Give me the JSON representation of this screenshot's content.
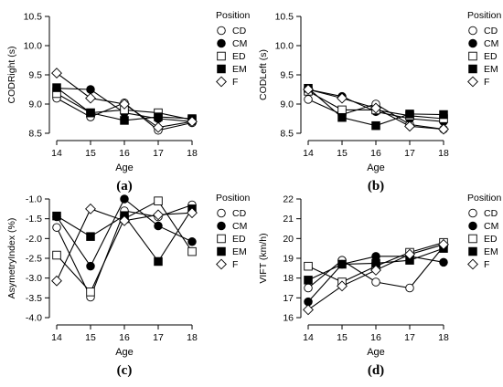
{
  "chart_data": [
    {
      "type": "line",
      "panel_label": "(a)",
      "xlabel": "Age",
      "ylabel": "CODRight (s)",
      "x": [
        14,
        15,
        16,
        17,
        18
      ],
      "xlim": [
        14,
        18
      ],
      "ylim": [
        8.5,
        10.5
      ],
      "yticks": [
        8.5,
        9.0,
        9.5,
        10.0,
        10.5
      ],
      "ytick_labels": [
        "8.5",
        "9.0",
        "9.5",
        "10.0",
        "10.5"
      ],
      "legend_title": "Position",
      "legend_position": "right",
      "series": [
        {
          "name": "CD",
          "marker": "open-circle",
          "values": [
            9.1,
            8.78,
            9.02,
            8.55,
            8.68
          ]
        },
        {
          "name": "CM",
          "marker": "filled-circle",
          "values": [
            9.27,
            9.25,
            8.85,
            8.75,
            8.7
          ]
        },
        {
          "name": "ED",
          "marker": "open-square",
          "values": [
            9.18,
            8.85,
            8.9,
            8.85,
            8.73
          ]
        },
        {
          "name": "EM",
          "marker": "filled-square",
          "values": [
            9.28,
            8.85,
            8.72,
            8.78,
            8.75
          ]
        },
        {
          "name": "F",
          "marker": "open-diamond",
          "values": [
            9.53,
            9.1,
            9.0,
            8.6,
            8.7
          ]
        }
      ]
    },
    {
      "type": "line",
      "panel_label": "(b)",
      "xlabel": "Age",
      "ylabel": "CODLeft (s)",
      "x": [
        14,
        15,
        16,
        17,
        18
      ],
      "xlim": [
        14,
        18
      ],
      "ylim": [
        8.5,
        10.5
      ],
      "yticks": [
        8.5,
        9.0,
        9.5,
        10.0,
        10.5
      ],
      "ytick_labels": [
        "8.5",
        "9.0",
        "9.5",
        "10.0",
        "10.5"
      ],
      "legend_title": "Position",
      "legend_position": "right",
      "series": [
        {
          "name": "CD",
          "marker": "open-circle",
          "values": [
            9.08,
            8.82,
            9.0,
            8.65,
            8.57
          ]
        },
        {
          "name": "CM",
          "marker": "filled-circle",
          "values": [
            9.25,
            9.13,
            8.87,
            8.75,
            8.7
          ]
        },
        {
          "name": "ED",
          "marker": "open-square",
          "values": [
            9.22,
            8.9,
            8.9,
            8.8,
            8.75
          ]
        },
        {
          "name": "EM",
          "marker": "filled-square",
          "values": [
            9.27,
            8.77,
            8.63,
            8.83,
            8.82
          ]
        },
        {
          "name": "F",
          "marker": "open-diamond",
          "values": [
            9.25,
            9.1,
            8.93,
            8.62,
            8.57
          ]
        }
      ]
    },
    {
      "type": "line",
      "panel_label": "(c)",
      "xlabel": "Age",
      "ylabel": "AsymetryIndex (%)",
      "x": [
        14,
        15,
        16,
        17,
        18
      ],
      "xlim": [
        14,
        18
      ],
      "ylim": [
        -4.0,
        -1.0
      ],
      "yticks": [
        -4.0,
        -3.5,
        -3.0,
        -2.5,
        -2.0,
        -1.5,
        -1.0
      ],
      "ytick_labels": [
        "-4.0",
        "-3.5",
        "-3.0",
        "-2.5",
        "-2.0",
        "-1.5",
        "-1.0"
      ],
      "legend_title": "Position",
      "legend_position": "right",
      "series": [
        {
          "name": "CD",
          "marker": "open-circle",
          "values": [
            -1.72,
            -3.48,
            -1.3,
            -1.45,
            -1.15
          ]
        },
        {
          "name": "CM",
          "marker": "filled-circle",
          "values": [
            -1.45,
            -2.7,
            -1.0,
            -1.68,
            -2.08
          ]
        },
        {
          "name": "ED",
          "marker": "open-square",
          "values": [
            -2.42,
            -3.35,
            -1.5,
            -1.05,
            -2.33
          ]
        },
        {
          "name": "EM",
          "marker": "filled-square",
          "values": [
            -1.43,
            -1.95,
            -1.42,
            -2.58,
            -1.25
          ]
        },
        {
          "name": "F",
          "marker": "open-diamond",
          "values": [
            -3.07,
            -1.25,
            -1.55,
            -1.4,
            -1.35
          ]
        }
      ]
    },
    {
      "type": "line",
      "panel_label": "(d)",
      "xlabel": "Age",
      "ylabel": "VIFT (km/h)",
      "x": [
        14,
        15,
        16,
        17,
        18
      ],
      "xlim": [
        14,
        18
      ],
      "ylim": [
        16,
        22
      ],
      "yticks": [
        16,
        17,
        18,
        19,
        20,
        21,
        22
      ],
      "ytick_labels": [
        "16",
        "17",
        "18",
        "19",
        "20",
        "21",
        "22"
      ],
      "legend_title": "Position",
      "legend_position": "right",
      "series": [
        {
          "name": "CD",
          "marker": "open-circle",
          "values": [
            17.5,
            18.9,
            17.8,
            17.5,
            19.6
          ]
        },
        {
          "name": "CM",
          "marker": "filled-circle",
          "values": [
            16.8,
            18.7,
            19.1,
            19.1,
            18.8
          ]
        },
        {
          "name": "ED",
          "marker": "open-square",
          "values": [
            18.6,
            17.8,
            18.6,
            19.3,
            19.8
          ]
        },
        {
          "name": "EM",
          "marker": "filled-square",
          "values": [
            17.9,
            18.7,
            18.75,
            18.9,
            19.5
          ]
        },
        {
          "name": "F",
          "marker": "open-diamond",
          "values": [
            16.4,
            17.6,
            18.4,
            19.2,
            19.7
          ]
        }
      ]
    }
  ]
}
